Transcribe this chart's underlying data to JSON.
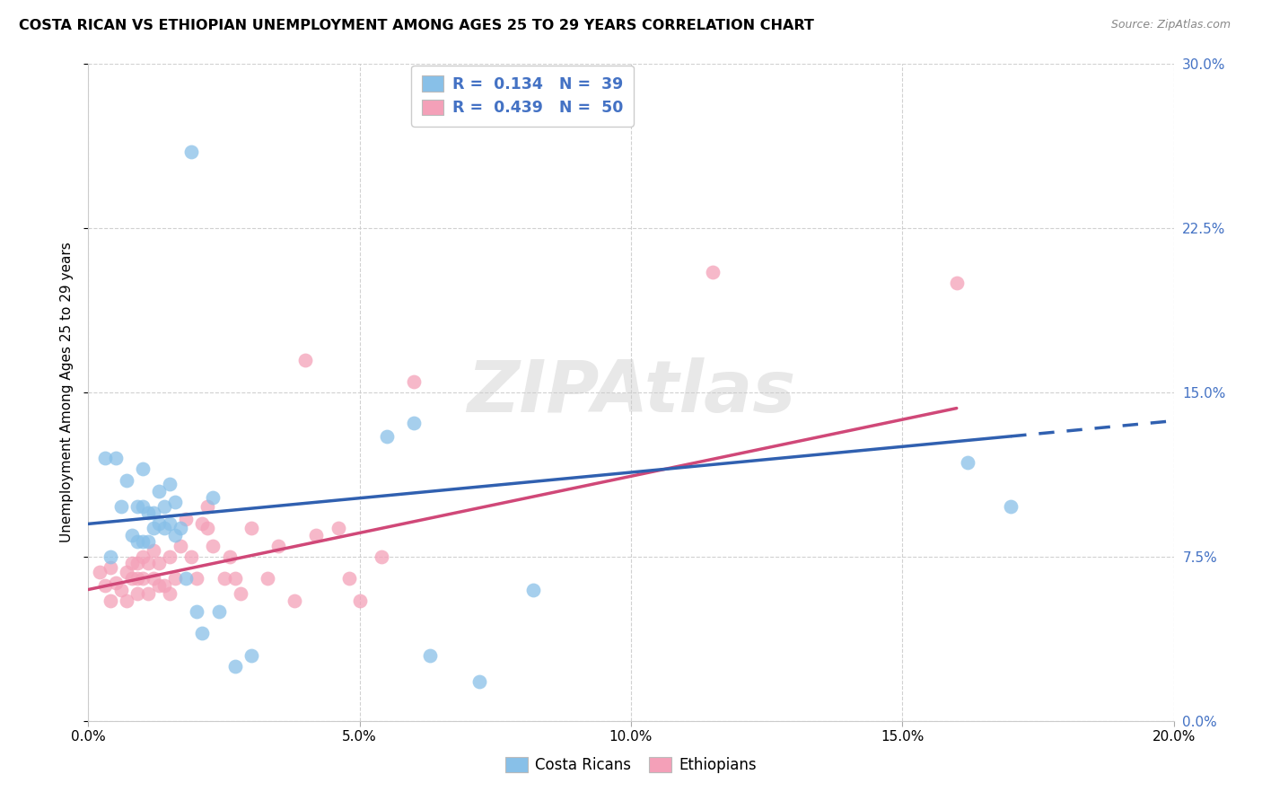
{
  "title": "COSTA RICAN VS ETHIOPIAN UNEMPLOYMENT AMONG AGES 25 TO 29 YEARS CORRELATION CHART",
  "source": "Source: ZipAtlas.com",
  "ylabel": "Unemployment Among Ages 25 to 29 years",
  "xlim": [
    0.0,
    0.2
  ],
  "ylim": [
    0.0,
    0.3
  ],
  "xticks": [
    0.0,
    0.05,
    0.1,
    0.15,
    0.2
  ],
  "yticks": [
    0.0,
    0.075,
    0.15,
    0.225,
    0.3
  ],
  "xticklabels": [
    "0.0%",
    "5.0%",
    "10.0%",
    "15.0%",
    "20.0%"
  ],
  "yticklabels": [
    "0.0%",
    "7.5%",
    "15.0%",
    "22.5%",
    "30.0%"
  ],
  "legend_r1": "R =  0.134   N =  39",
  "legend_r2": "R =  0.439   N =  50",
  "legend_label1": "Costa Ricans",
  "legend_label2": "Ethiopians",
  "blue_color": "#88c0e8",
  "pink_color": "#f4a0b8",
  "blue_line_color": "#3060b0",
  "pink_line_color": "#d04878",
  "watermark": "ZIPAtlas",
  "cr_line_x0": 0.0,
  "cr_line_y0": 0.09,
  "cr_line_x1": 0.17,
  "cr_line_y1": 0.13,
  "eth_line_x0": 0.0,
  "eth_line_y0": 0.06,
  "eth_line_x1": 0.17,
  "eth_line_y1": 0.148,
  "costa_rican_x": [
    0.003,
    0.004,
    0.005,
    0.006,
    0.007,
    0.008,
    0.009,
    0.009,
    0.01,
    0.01,
    0.01,
    0.011,
    0.011,
    0.012,
    0.012,
    0.013,
    0.013,
    0.014,
    0.014,
    0.015,
    0.015,
    0.016,
    0.016,
    0.017,
    0.018,
    0.019,
    0.02,
    0.021,
    0.023,
    0.024,
    0.027,
    0.03,
    0.055,
    0.06,
    0.063,
    0.072,
    0.082,
    0.162,
    0.17
  ],
  "costa_rican_y": [
    0.12,
    0.075,
    0.12,
    0.098,
    0.11,
    0.085,
    0.082,
    0.098,
    0.082,
    0.098,
    0.115,
    0.082,
    0.095,
    0.088,
    0.095,
    0.09,
    0.105,
    0.088,
    0.098,
    0.09,
    0.108,
    0.085,
    0.1,
    0.088,
    0.065,
    0.26,
    0.05,
    0.04,
    0.102,
    0.05,
    0.025,
    0.03,
    0.13,
    0.136,
    0.03,
    0.018,
    0.06,
    0.118,
    0.098
  ],
  "ethiopian_x": [
    0.002,
    0.003,
    0.004,
    0.004,
    0.005,
    0.006,
    0.007,
    0.007,
    0.008,
    0.008,
    0.009,
    0.009,
    0.009,
    0.01,
    0.01,
    0.011,
    0.011,
    0.012,
    0.012,
    0.013,
    0.013,
    0.014,
    0.015,
    0.015,
    0.016,
    0.017,
    0.018,
    0.019,
    0.02,
    0.021,
    0.022,
    0.022,
    0.023,
    0.025,
    0.026,
    0.027,
    0.028,
    0.03,
    0.033,
    0.035,
    0.038,
    0.04,
    0.042,
    0.046,
    0.048,
    0.05,
    0.054,
    0.06,
    0.115,
    0.16
  ],
  "ethiopian_y": [
    0.068,
    0.062,
    0.07,
    0.055,
    0.063,
    0.06,
    0.068,
    0.055,
    0.065,
    0.072,
    0.058,
    0.065,
    0.072,
    0.065,
    0.075,
    0.058,
    0.072,
    0.065,
    0.078,
    0.062,
    0.072,
    0.062,
    0.058,
    0.075,
    0.065,
    0.08,
    0.092,
    0.075,
    0.065,
    0.09,
    0.088,
    0.098,
    0.08,
    0.065,
    0.075,
    0.065,
    0.058,
    0.088,
    0.065,
    0.08,
    0.055,
    0.165,
    0.085,
    0.088,
    0.065,
    0.055,
    0.075,
    0.155,
    0.205,
    0.2
  ]
}
